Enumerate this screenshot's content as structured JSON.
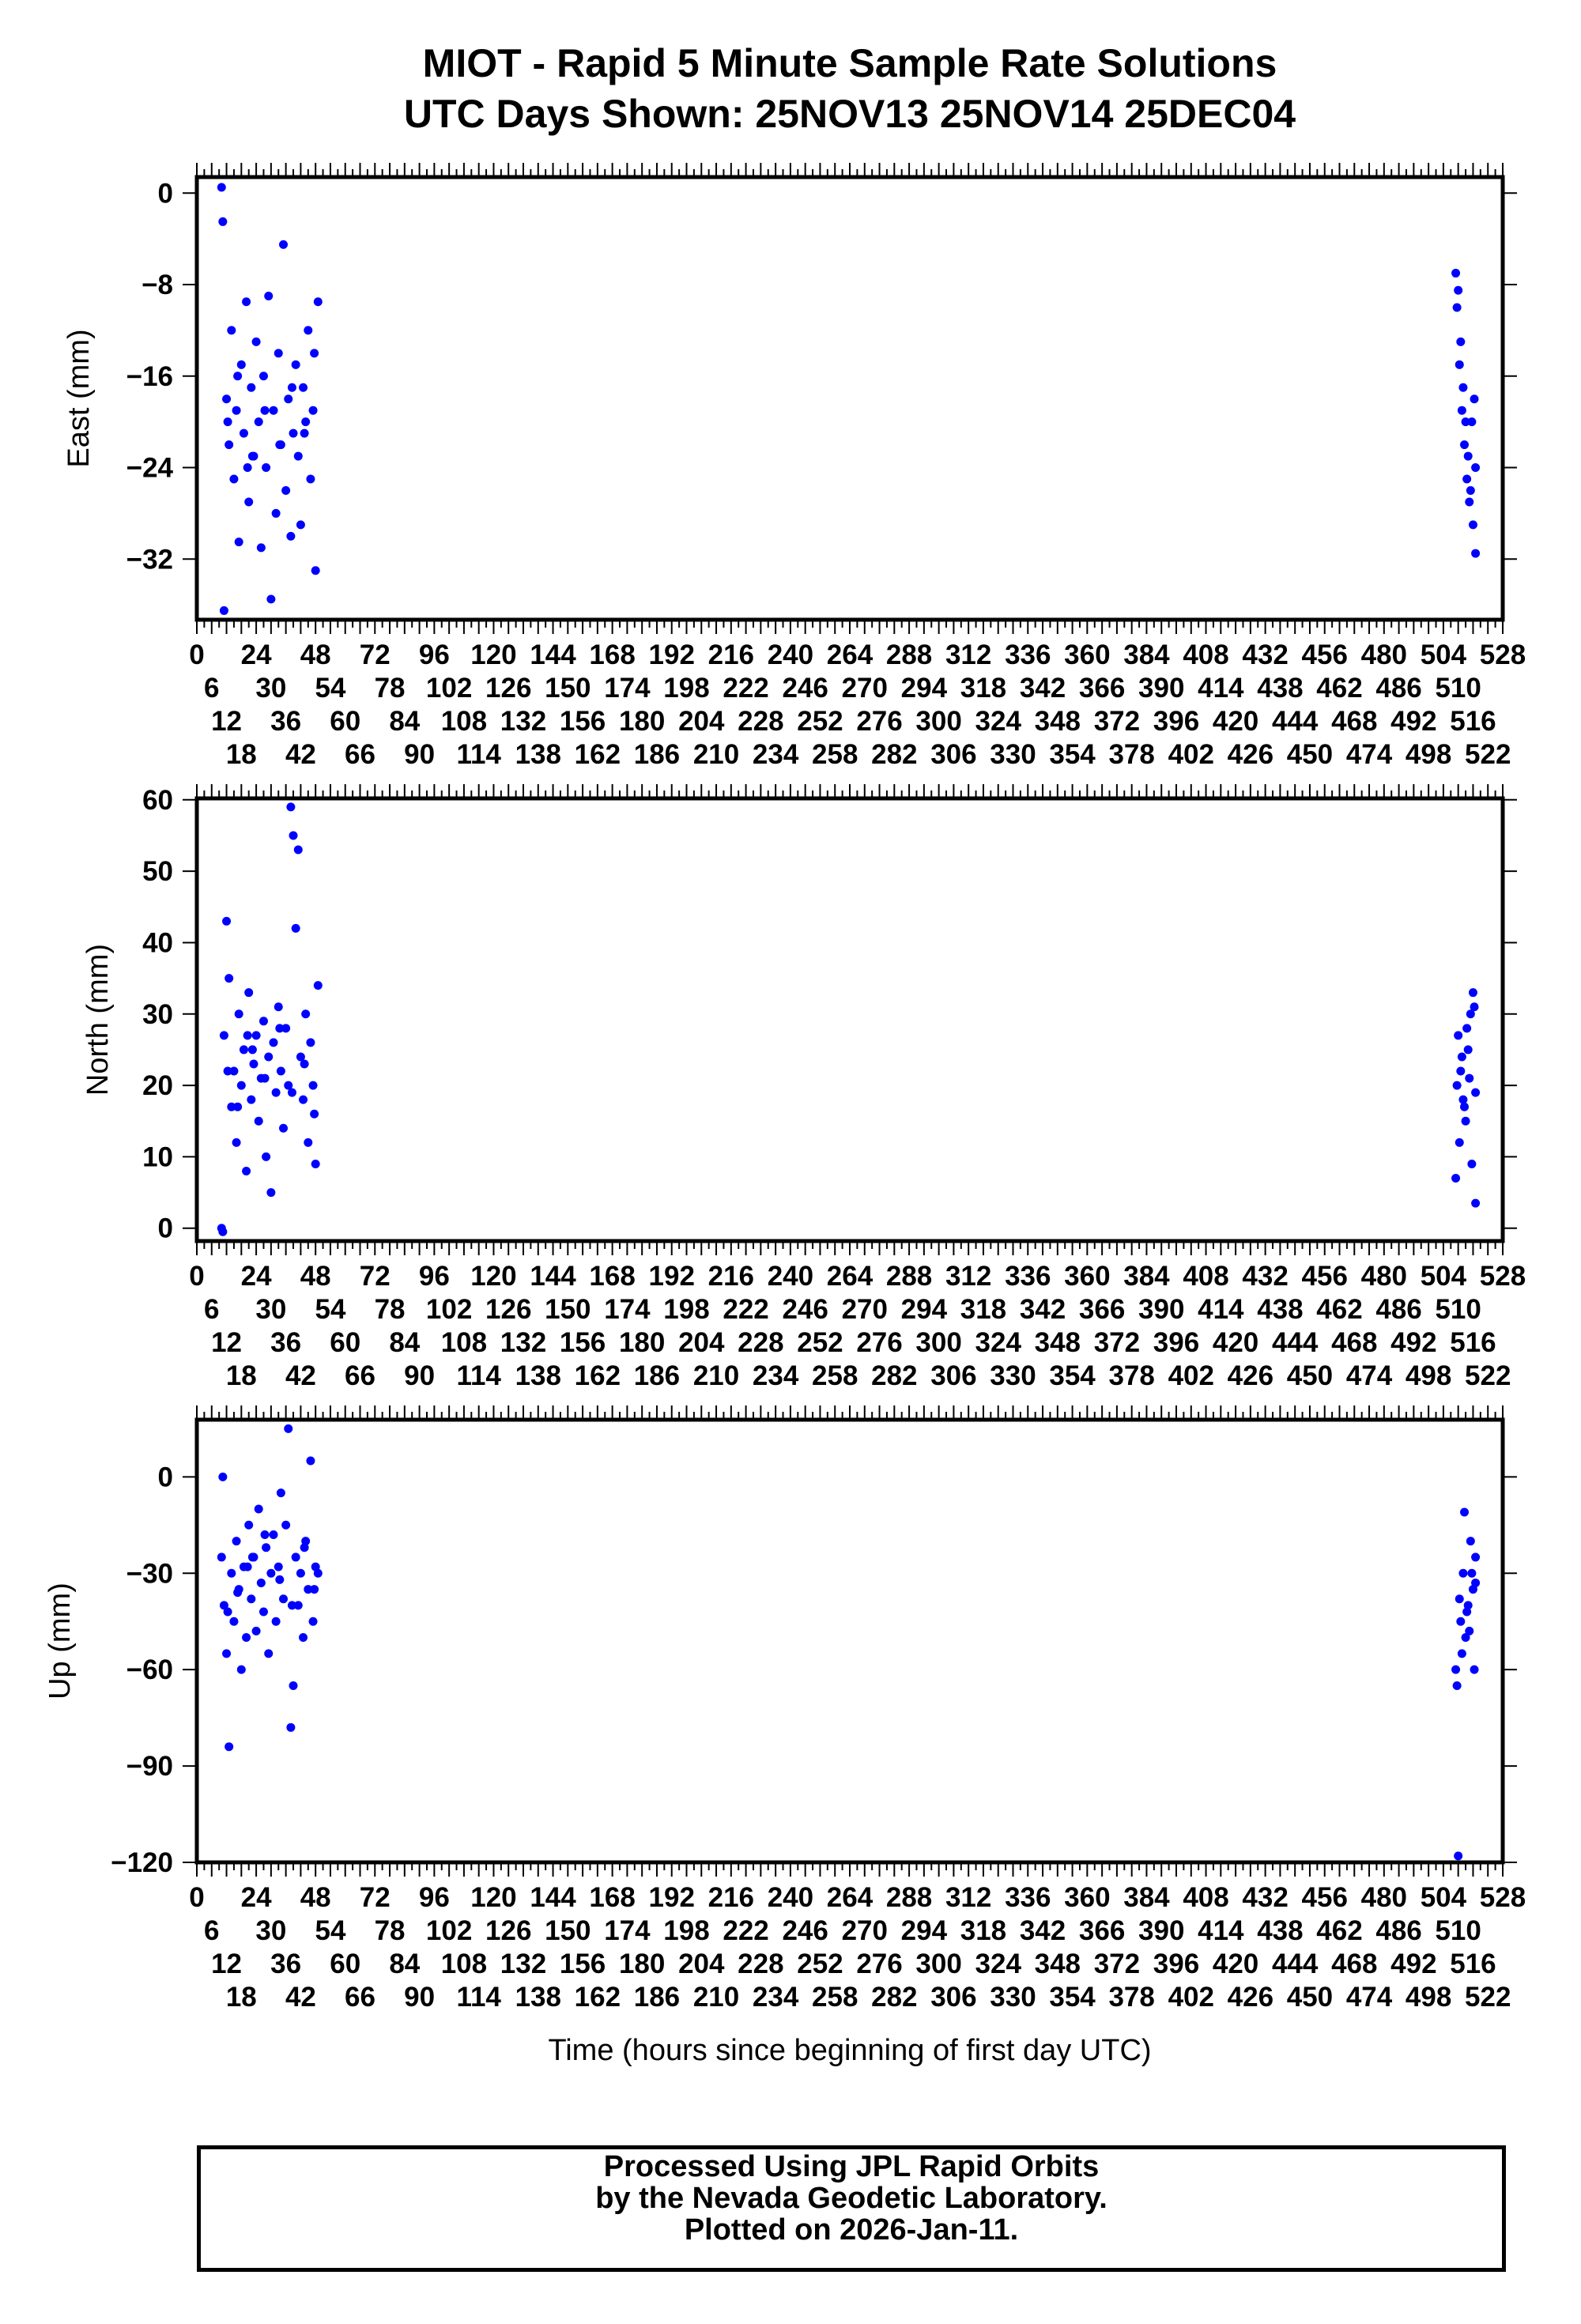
{
  "header": {
    "title_line1": "MIOT - Rapid 5 Minute Sample Rate Solutions",
    "title_line2": "UTC Days Shown:  25NOV13 25NOV14 25DEC04"
  },
  "footer": {
    "line1": "Processed Using JPL Rapid Orbits",
    "line2": "by the Nevada Geodetic Laboratory.",
    "line3": "Plotted on 2026-Jan-11."
  },
  "chart_data": [
    {
      "type": "scatter",
      "title": "East",
      "ylabel": "East (mm)",
      "xlabel": "",
      "xlim": [
        0,
        528
      ],
      "ylim": [
        -37.3,
        1.4
      ],
      "yticks": [
        0,
        -8,
        -16,
        -24,
        -32
      ],
      "xticks": {
        "start": 0,
        "step": 6,
        "end": 528
      },
      "color": "#0000ff"
    },
    {
      "type": "scatter",
      "title": "North",
      "ylabel": "North (mm)",
      "xlabel": "",
      "xlim": [
        0,
        528
      ],
      "ylim": [
        -1.8,
        60.2
      ],
      "yticks": [
        0,
        10,
        20,
        30,
        40,
        50,
        60
      ],
      "xticks": {
        "start": 0,
        "step": 6,
        "end": 528
      },
      "color": "#0000ff"
    },
    {
      "type": "scatter",
      "title": "Up",
      "ylabel": "Up (mm)",
      "xlabel": "Time (hours since beginning of first day UTC)",
      "xlim": [
        0,
        528
      ],
      "ylim": [
        -120,
        17.8
      ],
      "yticks": [
        0,
        -30,
        -60,
        -90,
        -120
      ],
      "xticks": {
        "start": 0,
        "step": 6,
        "end": 528
      },
      "color": "#0000ff"
    }
  ],
  "series": {
    "t": [
      10,
      10.5,
      11,
      12,
      13,
      14,
      15,
      16,
      17,
      18,
      19,
      20,
      21,
      22,
      23,
      24,
      25,
      26,
      27,
      28,
      29,
      30,
      31,
      32,
      33,
      34,
      35,
      36,
      37,
      38,
      39,
      40,
      41,
      42,
      43,
      44,
      45,
      46,
      47,
      48,
      49,
      12.5,
      16.5,
      22.5,
      27.5,
      33.5,
      38.5,
      43.5,
      47.5,
      20.5,
      509,
      510,
      511,
      512,
      513,
      514,
      515,
      516,
      517,
      509.5,
      510.5,
      511.5,
      512.5,
      513.5,
      514.5,
      515.5,
      516.5,
      517
    ],
    "east": [
      0.5,
      -2.5,
      -36.5,
      -18,
      -22,
      -12,
      -25,
      -19,
      -30.5,
      -15,
      -21,
      -9.5,
      -27,
      -17,
      -23,
      -13,
      -20,
      -31,
      -16,
      -24,
      -9,
      -35.5,
      -19,
      -28,
      -14,
      -22,
      -4.5,
      -26,
      -18,
      -30,
      -21,
      -15,
      -23,
      -29,
      -17,
      -20,
      -12,
      -25,
      -19,
      -33,
      -9.5,
      -20,
      -16,
      -23,
      -19,
      -22,
      -17,
      -21,
      -14,
      -24,
      -7,
      -8.5,
      -13,
      -17,
      -20,
      -23,
      -26,
      -29,
      -31.5,
      -10,
      -15,
      -19,
      -22,
      -25,
      -27,
      -20,
      -18,
      -24
    ],
    "north": [
      0,
      -0.5,
      27,
      43,
      35,
      17,
      22,
      12,
      30,
      20,
      25,
      8,
      33,
      18,
      23,
      27,
      15,
      21,
      29,
      10,
      24,
      5,
      26,
      19,
      31,
      22,
      14,
      28,
      20,
      59,
      55,
      42,
      53,
      24,
      18,
      30,
      12,
      26,
      20,
      9,
      34,
      22,
      17,
      25,
      21,
      28,
      19,
      23,
      16,
      27,
      7,
      27,
      22,
      18,
      15,
      25,
      30,
      33,
      3.5,
      20,
      12,
      24,
      17,
      28,
      21,
      9,
      31,
      19
    ],
    "up": [
      -25,
      0,
      -40,
      -55,
      -84,
      -30,
      -45,
      -20,
      -35,
      -60,
      -28,
      -50,
      -15,
      -38,
      -25,
      -48,
      -10,
      -33,
      -42,
      -22,
      -55,
      -30,
      -18,
      -45,
      -28,
      -5,
      -38,
      -15,
      15,
      -78,
      -65,
      -25,
      -40,
      -30,
      -50,
      -20,
      -35,
      5,
      -45,
      -28,
      -30,
      -42,
      -36,
      -25,
      -18,
      -32,
      -40,
      -22,
      -35,
      -28,
      -60,
      -118,
      -45,
      -30,
      -50,
      -40,
      -20,
      -35,
      -25,
      -65,
      -38,
      -55,
      -11,
      -42,
      -48,
      -30,
      -60,
      -33
    ]
  }
}
